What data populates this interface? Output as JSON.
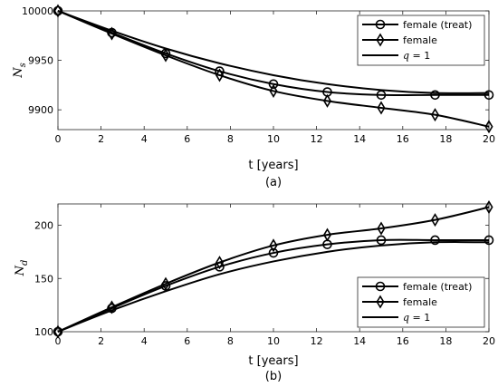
{
  "chart_data": [
    {
      "type": "line",
      "subtitle": "(a)",
      "xlabel": "t [years]",
      "ylabel_base": "N",
      "ylabel_sub": "s",
      "xlim": [
        0,
        20
      ],
      "ylim": [
        9880,
        10000
      ],
      "xticks": [
        0,
        2,
        4,
        6,
        8,
        10,
        12,
        14,
        16,
        18,
        20
      ],
      "yticks": [
        9900,
        9950,
        10000
      ],
      "legend_position": "top-right",
      "series": [
        {
          "name": "female (treat)",
          "marker": "circle",
          "x": [
            0,
            2.5,
            5,
            7.5,
            10,
            12.5,
            15,
            17.5,
            20
          ],
          "y": [
            10000,
            9978,
            9957,
            9939,
            9926,
            9918,
            9915,
            9915,
            9915
          ]
        },
        {
          "name": "female",
          "marker": "diamond",
          "x": [
            0,
            2.5,
            5,
            7.5,
            10,
            12.5,
            15,
            17.5,
            20
          ],
          "y": [
            10000,
            9977,
            9955,
            9935,
            9919,
            9909,
            9902,
            9895,
            9883
          ]
        },
        {
          "name_prefix": "q",
          "name_suffix": " = 1",
          "marker": "none",
          "x": [
            0,
            2.5,
            5,
            7.5,
            10,
            12.5,
            15,
            17.5,
            20
          ],
          "y": [
            10000,
            9980,
            9962,
            9947,
            9935,
            9926,
            9920,
            9917,
            9917
          ]
        }
      ]
    },
    {
      "type": "line",
      "subtitle": "(b)",
      "xlabel": "t [years]",
      "ylabel_base": "N",
      "ylabel_sub": "d",
      "xlim": [
        0,
        20
      ],
      "ylim": [
        100,
        220
      ],
      "xticks": [
        0,
        2,
        4,
        6,
        8,
        10,
        12,
        14,
        16,
        18,
        20
      ],
      "yticks": [
        100,
        150,
        200
      ],
      "legend_position": "bottom-right",
      "series": [
        {
          "name": "female (treat)",
          "marker": "circle",
          "x": [
            0,
            2.5,
            5,
            7.5,
            10,
            12.5,
            15,
            17.5,
            20
          ],
          "y": [
            100,
            122,
            143,
            161,
            174,
            182,
            186,
            186,
            186
          ]
        },
        {
          "name": "female",
          "marker": "diamond",
          "x": [
            0,
            2.5,
            5,
            7.5,
            10,
            12.5,
            15,
            17.5,
            20
          ],
          "y": [
            100,
            123,
            145,
            165,
            181,
            191,
            197,
            205,
            217
          ]
        },
        {
          "name_prefix": "q",
          "name_suffix": " = 1",
          "marker": "none",
          "x": [
            0,
            2.5,
            5,
            7.5,
            10,
            12.5,
            15,
            17.5,
            20
          ],
          "y": [
            100,
            120,
            138,
            154,
            166,
            175,
            181,
            184,
            184
          ]
        }
      ]
    }
  ]
}
